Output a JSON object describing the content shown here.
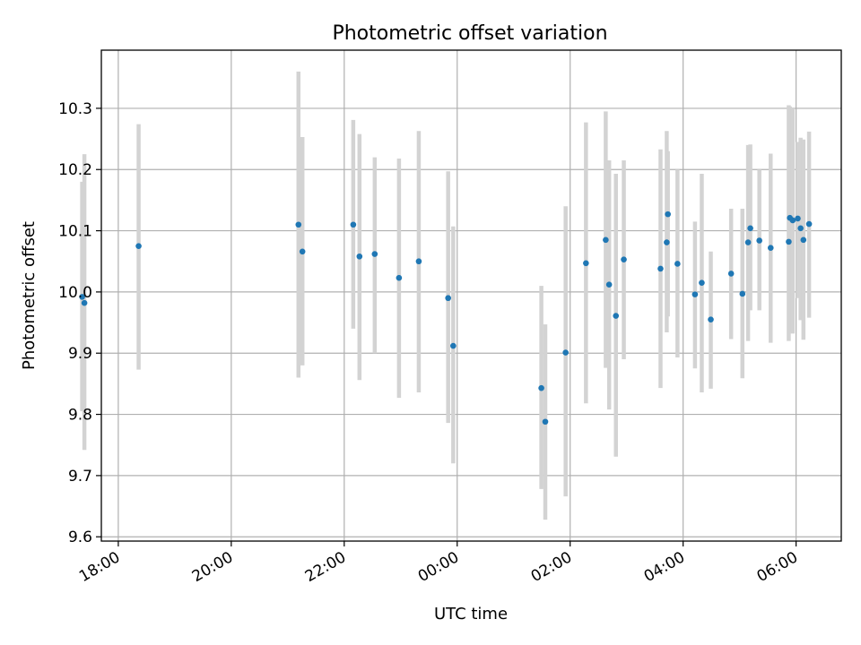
{
  "chart_data": {
    "type": "scatter",
    "title": "Photometric offset variation",
    "xlabel": "UTC time",
    "ylabel": "Photometric offset",
    "x_unit": "hours since 00:00 UTC",
    "xlim": [
      -6.3,
      6.8
    ],
    "ylim": [
      9.593,
      10.395
    ],
    "grid": true,
    "point_color": "#1f77b4",
    "errorbar_color": "#d3d3d3",
    "yticks": [
      9.6,
      9.7,
      9.8,
      9.9,
      10.0,
      10.1,
      10.2,
      10.3
    ],
    "ytick_labels": [
      "9.6",
      "9.7",
      "9.8",
      "9.9",
      "10.0",
      "10.1",
      "10.2",
      "10.3"
    ],
    "xticks": [
      -6,
      -4,
      -2,
      0,
      2,
      4,
      6
    ],
    "xtick_labels": [
      "18:00",
      "20:00",
      "22:00",
      "00:00",
      "02:00",
      "04:00",
      "06:00"
    ],
    "points": [
      {
        "x": -6.64,
        "y": 9.992,
        "lo": 9.805,
        "hi": 10.18
      },
      {
        "x": -6.6,
        "y": 9.982,
        "lo": 9.742,
        "hi": 10.225
      },
      {
        "x": -5.64,
        "y": 10.075,
        "lo": 9.873,
        "hi": 10.274
      },
      {
        "x": -2.81,
        "y": 10.11,
        "lo": 9.86,
        "hi": 10.36
      },
      {
        "x": -2.74,
        "y": 10.066,
        "lo": 9.88,
        "hi": 10.253
      },
      {
        "x": -1.84,
        "y": 10.11,
        "lo": 9.94,
        "hi": 10.281
      },
      {
        "x": -1.73,
        "y": 10.058,
        "lo": 9.856,
        "hi": 10.258
      },
      {
        "x": -1.46,
        "y": 10.062,
        "lo": 9.9,
        "hi": 10.22
      },
      {
        "x": -1.03,
        "y": 10.023,
        "lo": 9.827,
        "hi": 10.218
      },
      {
        "x": -0.68,
        "y": 10.05,
        "lo": 9.836,
        "hi": 10.263
      },
      {
        "x": -0.16,
        "y": 9.99,
        "lo": 9.786,
        "hi": 10.197
      },
      {
        "x": -0.07,
        "y": 9.912,
        "lo": 9.72,
        "hi": 10.107
      },
      {
        "x": 1.49,
        "y": 9.843,
        "lo": 9.678,
        "hi": 10.01
      },
      {
        "x": 1.56,
        "y": 9.788,
        "lo": 9.628,
        "hi": 9.947
      },
      {
        "x": 1.92,
        "y": 9.901,
        "lo": 9.666,
        "hi": 10.14
      },
      {
        "x": 2.28,
        "y": 10.047,
        "lo": 9.818,
        "hi": 10.277
      },
      {
        "x": 2.63,
        "y": 10.085,
        "lo": 9.876,
        "hi": 10.295
      },
      {
        "x": 2.69,
        "y": 10.012,
        "lo": 9.808,
        "hi": 10.215
      },
      {
        "x": 2.81,
        "y": 9.961,
        "lo": 9.731,
        "hi": 10.193
      },
      {
        "x": 2.95,
        "y": 10.053,
        "lo": 9.89,
        "hi": 10.215
      },
      {
        "x": 3.6,
        "y": 10.038,
        "lo": 9.843,
        "hi": 10.233
      },
      {
        "x": 3.71,
        "y": 10.081,
        "lo": 9.934,
        "hi": 10.263
      },
      {
        "x": 3.73,
        "y": 10.127,
        "lo": 9.96,
        "hi": 10.23
      },
      {
        "x": 3.9,
        "y": 10.046,
        "lo": 9.893,
        "hi": 10.2
      },
      {
        "x": 4.21,
        "y": 9.996,
        "lo": 9.875,
        "hi": 10.115
      },
      {
        "x": 4.33,
        "y": 10.015,
        "lo": 9.836,
        "hi": 10.193
      },
      {
        "x": 4.49,
        "y": 9.955,
        "lo": 9.842,
        "hi": 10.066
      },
      {
        "x": 4.85,
        "y": 10.03,
        "lo": 9.923,
        "hi": 10.136
      },
      {
        "x": 5.05,
        "y": 9.997,
        "lo": 9.859,
        "hi": 10.136
      },
      {
        "x": 5.15,
        "y": 10.081,
        "lo": 9.92,
        "hi": 10.24
      },
      {
        "x": 5.19,
        "y": 10.104,
        "lo": 9.97,
        "hi": 10.241
      },
      {
        "x": 5.35,
        "y": 10.084,
        "lo": 9.97,
        "hi": 10.2
      },
      {
        "x": 5.55,
        "y": 10.072,
        "lo": 9.917,
        "hi": 10.226
      },
      {
        "x": 5.87,
        "y": 10.082,
        "lo": 9.92,
        "hi": 10.305
      },
      {
        "x": 5.89,
        "y": 10.121,
        "lo": 9.935,
        "hi": 10.303
      },
      {
        "x": 5.94,
        "y": 10.117,
        "lo": 9.932,
        "hi": 10.3
      },
      {
        "x": 6.03,
        "y": 10.12,
        "lo": 9.99,
        "hi": 10.245
      },
      {
        "x": 6.08,
        "y": 10.104,
        "lo": 9.954,
        "hi": 10.252
      },
      {
        "x": 6.13,
        "y": 10.085,
        "lo": 9.922,
        "hi": 10.249
      },
      {
        "x": 6.23,
        "y": 10.111,
        "lo": 9.958,
        "hi": 10.262
      }
    ]
  }
}
